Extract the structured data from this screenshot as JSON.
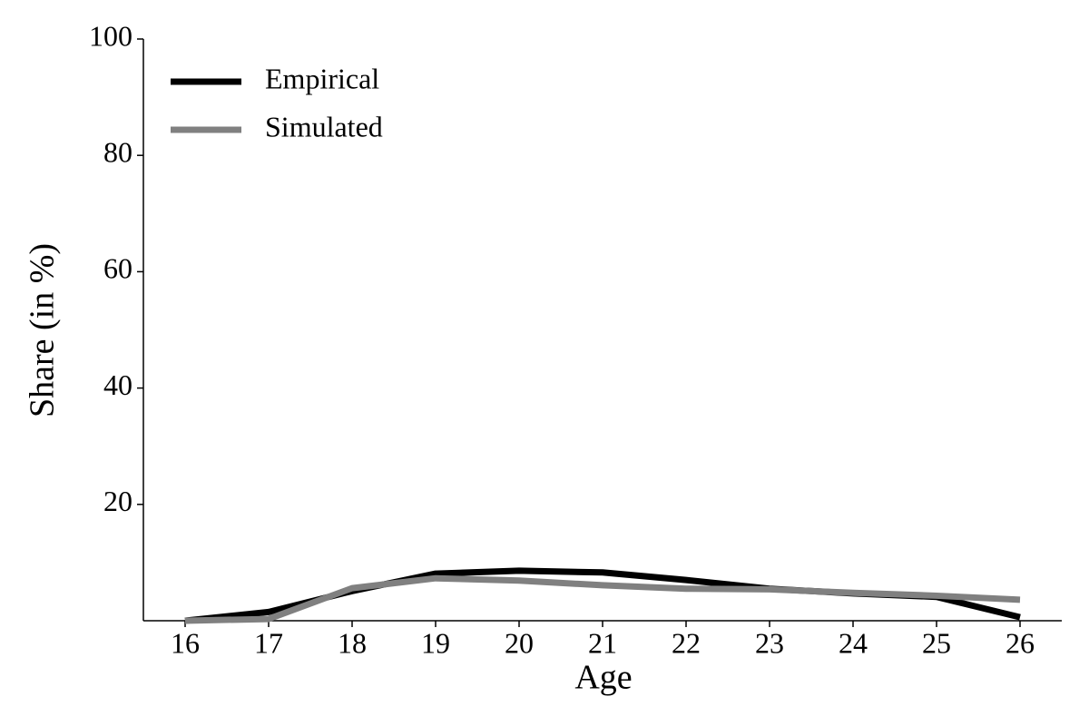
{
  "chart_data": {
    "type": "line",
    "x_label": "Age",
    "y_label": "Share (in %)",
    "x": [
      16,
      17,
      18,
      19,
      20,
      21,
      22,
      23,
      24,
      25,
      26
    ],
    "series": [
      {
        "name": "Empirical",
        "color": "#000000",
        "values": [
          0,
          1.5,
          5.1,
          8.1,
          8.6,
          8.3,
          7.0,
          5.5,
          4.7,
          4.1,
          0.6
        ]
      },
      {
        "name": "Simulated",
        "color": "#808080",
        "values": [
          0,
          0.3,
          5.6,
          7.3,
          6.9,
          6.1,
          5.5,
          5.4,
          4.8,
          4.3,
          3.6
        ]
      }
    ],
    "xlim": [
      15.5,
      26.5
    ],
    "ylim": [
      0,
      100
    ],
    "xticks": [
      16,
      17,
      18,
      19,
      20,
      21,
      22,
      23,
      24,
      25,
      26
    ],
    "yticks": [
      20,
      40,
      60,
      80,
      100
    ],
    "legend": "upper left"
  }
}
